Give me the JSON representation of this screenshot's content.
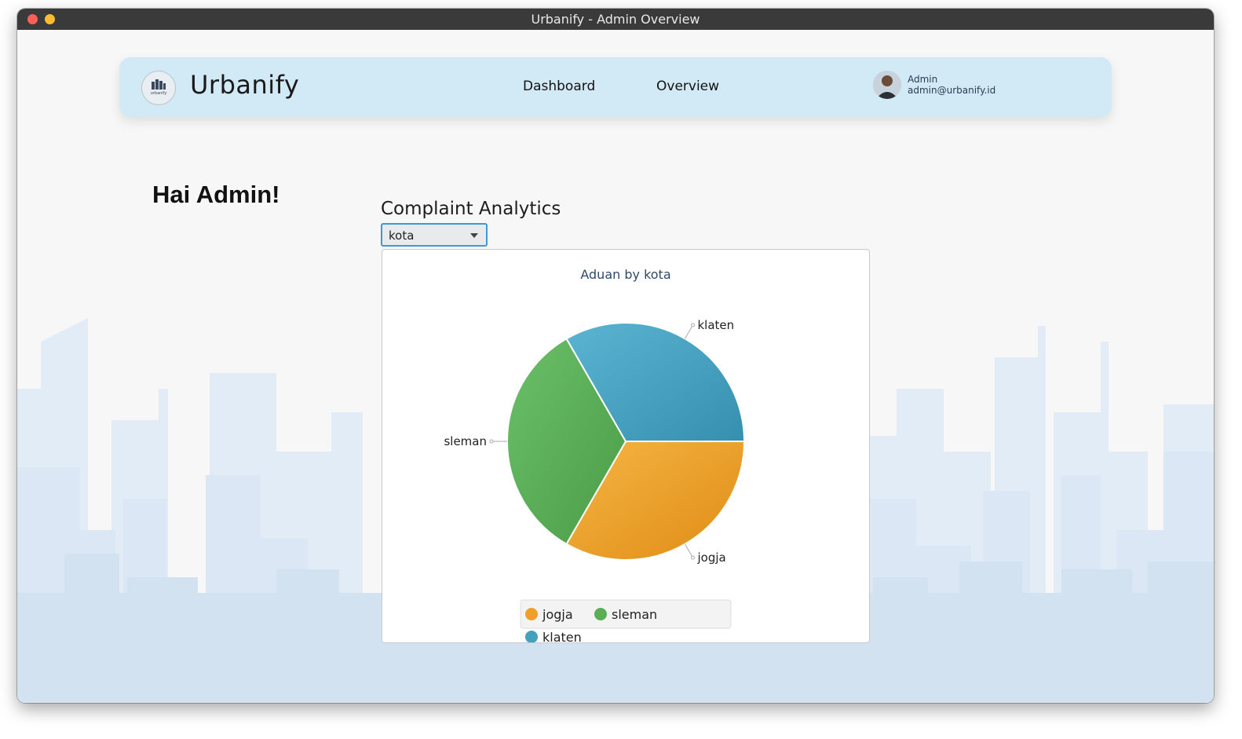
{
  "window": {
    "title": "Urbanify - Admin Overview"
  },
  "navbar": {
    "brand": "Urbanify",
    "logo_text": "urbanify",
    "links": [
      "Dashboard",
      "Overview"
    ],
    "user": {
      "name": "Admin",
      "email": "admin@urbanify.id"
    }
  },
  "main": {
    "greeting": "Hai Admin!",
    "section_title": "Complaint Analytics",
    "filter": {
      "selected": "kota"
    }
  },
  "colors": {
    "navbar_bg": "#d2eaf6",
    "accent": "#3d9ad6",
    "skyline_back": "#e2ecf7",
    "skyline_front": "#d3e2f1"
  },
  "chart_data": {
    "type": "pie",
    "title": "Aduan by kota",
    "categories": [
      "jogja",
      "sleman",
      "klaten"
    ],
    "values": [
      1,
      1,
      1
    ],
    "colors": [
      "#f0a02a",
      "#5aae55",
      "#45a0c0"
    ],
    "legend": {
      "position": "bottom",
      "entries": [
        "jogja",
        "sleman",
        "klaten"
      ]
    }
  }
}
